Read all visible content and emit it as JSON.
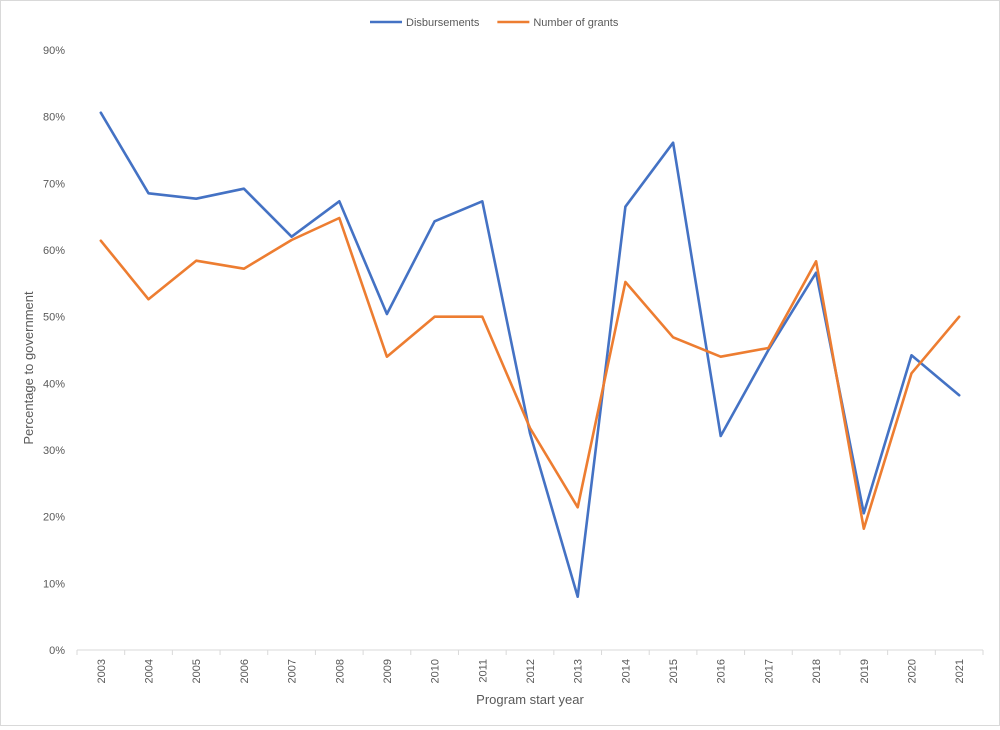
{
  "chart_data": {
    "type": "line",
    "title": "",
    "xlabel": "Program start year",
    "ylabel": "Percentage to government",
    "ylim": [
      0,
      90
    ],
    "y_ticks": [
      0,
      10,
      20,
      30,
      40,
      50,
      60,
      70,
      80,
      90
    ],
    "y_tick_labels": [
      "0%",
      "10%",
      "20%",
      "30%",
      "40%",
      "50%",
      "60%",
      "70%",
      "80%",
      "90%"
    ],
    "grid": false,
    "legend_position": "top-center",
    "categories": [
      "2003",
      "2004",
      "2005",
      "2006",
      "2007",
      "2008",
      "2009",
      "2010",
      "2011",
      "2012",
      "2013",
      "2014",
      "2015",
      "2016",
      "2017",
      "2018",
      "2019",
      "2020",
      "2021"
    ],
    "series": [
      {
        "name": "Disbursements",
        "color": "#4472C4",
        "values": [
          80.6,
          68.5,
          67.7,
          69.2,
          62.0,
          67.3,
          50.4,
          64.3,
          67.3,
          32.5,
          8.0,
          66.5,
          76.1,
          32.1,
          45.0,
          56.6,
          20.5,
          44.2,
          38.2
        ]
      },
      {
        "name": "Number of grants",
        "color": "#ED7D31",
        "values": [
          61.4,
          52.6,
          58.4,
          57.2,
          61.5,
          64.8,
          44.0,
          50.0,
          50.0,
          33.3,
          21.4,
          55.2,
          46.9,
          44.0,
          45.3,
          58.3,
          18.2,
          41.5,
          50.0
        ]
      }
    ]
  }
}
